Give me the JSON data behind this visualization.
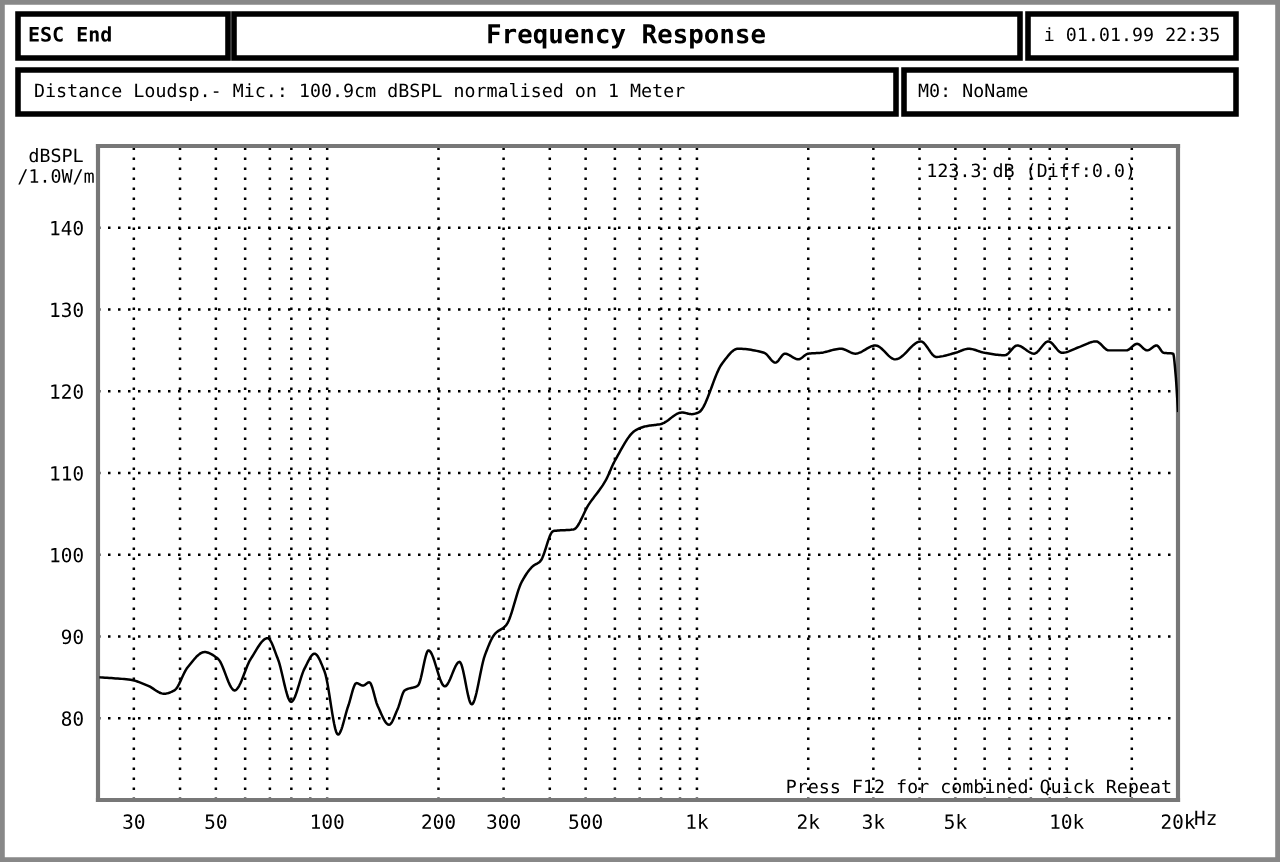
{
  "chart_data": {
    "type": "line",
    "title": "Frequency Response",
    "subtitle": "Distance Loudsp.- Mic.: 100.9cm dBSPL normalised on 1 Meter",
    "ylabel": "dBSPL\n/1.0W/m",
    "xlabel": "Hz",
    "annotations": [
      "ESC End",
      "i 01.01.99 22:35",
      "M0: NoName",
      "123.3 dB (Diff:0.0)",
      "Press F12 for combined Quick Repeat"
    ],
    "x": [
      24.4,
      29.4,
      32.7,
      36.2,
      38.6,
      41.9,
      46.6,
      50.6,
      56.2,
      62.2,
      69,
      73.5,
      79.9,
      86.9,
      92.4,
      98.4,
      107,
      114,
      120,
      125,
      130,
      137,
      147,
      155,
      162,
      176,
      188,
      208,
      228,
      246,
      267,
      284,
      305,
      336,
      360,
      377,
      409,
      464,
      509,
      565,
      600,
      681,
      725,
      800,
      910,
      968,
      1010,
      1170,
      1290,
      1520,
      1630,
      1730,
      1880,
      2000,
      2160,
      2450,
      2680,
      3040,
      3440,
      4030,
      4440,
      5000,
      5430,
      6000,
      6800,
      7350,
      8160,
      8920,
      9720,
      10800,
      12000,
      13000,
      14500,
      15500,
      16500,
      17500,
      18300,
      19400,
      19700,
      20000
    ],
    "series": [
      {
        "color": "#000000",
        "values": [
          85.0,
          84.7,
          84.0,
          83.0,
          83.4,
          86.2,
          88.1,
          87.3,
          83.4,
          87.3,
          89.8,
          87.3,
          82.0,
          86.1,
          87.9,
          85.7,
          78.0,
          81.5,
          84.3,
          84.0,
          84.4,
          81.5,
          79.2,
          81.1,
          83.4,
          84.0,
          88.3,
          83.9,
          86.9,
          81.7,
          87.7,
          90.3,
          91.4,
          96.7,
          98.6,
          99.2,
          102.9,
          103.1,
          106.1,
          109.0,
          111.5,
          115.2,
          115.7,
          116.0,
          117.4,
          117.2,
          117.4,
          123.4,
          125.2,
          124.7,
          123.5,
          124.6,
          123.9,
          124.6,
          124.7,
          125.2,
          124.6,
          125.6,
          123.9,
          126.1,
          124.2,
          124.7,
          125.2,
          124.7,
          124.4,
          125.6,
          124.6,
          126.1,
          124.7,
          125.4,
          126.1,
          125.0,
          125.0,
          125.8,
          125.0,
          125.6,
          124.7,
          124.6,
          122.1,
          117.6
        ]
      }
    ],
    "log": "x",
    "xlim": [
      24,
      20000
    ],
    "ylim": [
      70,
      150
    ],
    "xticks": [
      {
        "value": 30,
        "label": "30"
      },
      {
        "value": 40,
        "label": null
      },
      50,
      {
        "value": 60,
        "label": null
      },
      {
        "value": 70,
        "label": null
      },
      {
        "value": 80,
        "label": null
      },
      {
        "value": 90,
        "label": null
      },
      100,
      200,
      300,
      {
        "value": 400,
        "label": null
      },
      500,
      {
        "value": 600,
        "label": null
      },
      {
        "value": 700,
        "label": null
      },
      {
        "value": 800,
        "label": null
      },
      {
        "value": 900,
        "label": null
      },
      {
        "value": 1000,
        "label": "1k"
      },
      {
        "value": 2000,
        "label": "2k"
      },
      {
        "value": 3000,
        "label": "3k"
      },
      {
        "value": 4000,
        "label": null
      },
      {
        "value": 5000,
        "label": "5k"
      },
      {
        "value": 6000,
        "label": null
      },
      {
        "value": 7000,
        "label": null
      },
      {
        "value": 8000,
        "label": null
      },
      {
        "value": 9000,
        "label": null
      },
      {
        "value": 10000,
        "label": "10k"
      },
      {
        "value": 15000,
        "label": null
      },
      {
        "value": 20000,
        "label": "20k"
      }
    ],
    "yticks": [
      80,
      90,
      100,
      110,
      120,
      130,
      140
    ],
    "grid": true
  }
}
